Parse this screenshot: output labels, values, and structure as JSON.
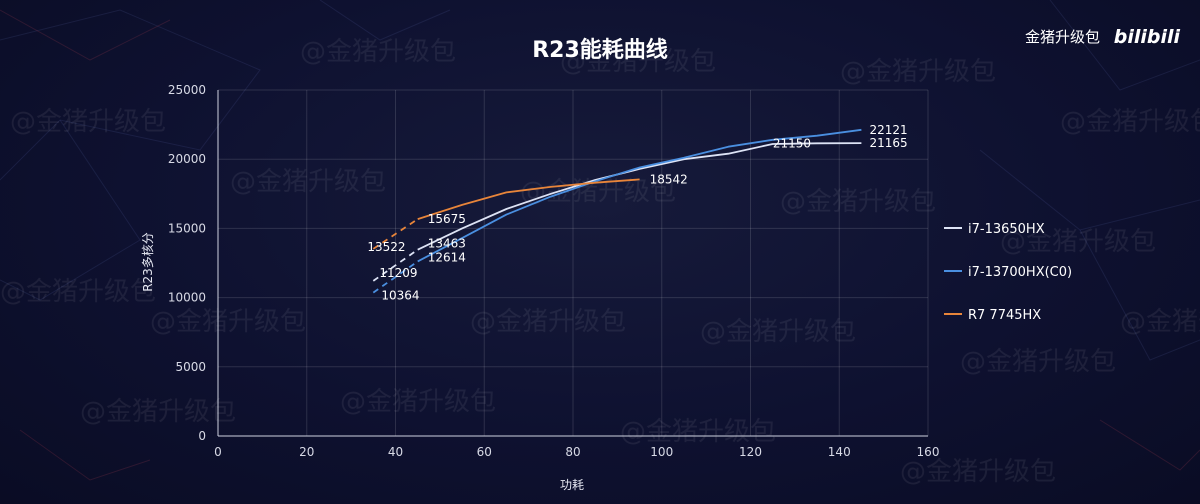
{
  "header": {
    "brand_name": "金猪升级包",
    "logo_text": "bilibili"
  },
  "watermark": "@金猪升级包",
  "chart_data": {
    "type": "line",
    "title": "R23能耗曲线",
    "xlabel": "功耗",
    "ylabel": "R23多核分",
    "xlim": [
      0,
      160
    ],
    "ylim": [
      0,
      25000
    ],
    "xticks": [
      0,
      20,
      40,
      60,
      80,
      100,
      120,
      140,
      160
    ],
    "yticks": [
      0,
      5000,
      10000,
      15000,
      20000,
      25000
    ],
    "grid": true,
    "legend_position": "right",
    "series": [
      {
        "name": "i7-13650HX",
        "color": "#dde3f5",
        "dashed_points": [
          [
            35,
            11209
          ],
          [
            45,
            13463
          ]
        ],
        "solid_points": [
          [
            45,
            13463
          ],
          [
            55,
            15000
          ],
          [
            65,
            16400
          ],
          [
            75,
            17500
          ],
          [
            85,
            18500
          ],
          [
            95,
            19300
          ],
          [
            105,
            20000
          ],
          [
            115,
            20400
          ],
          [
            125,
            21100
          ],
          [
            135,
            21150
          ],
          [
            145,
            21165
          ]
        ],
        "labels": [
          {
            "x": 35,
            "y": 11209,
            "text": "11209"
          },
          {
            "x": 45,
            "y": 13463,
            "text": "13463"
          },
          {
            "x": 135,
            "y": 21150,
            "text": "21150"
          },
          {
            "x": 145,
            "y": 21165,
            "text": "21165"
          }
        ]
      },
      {
        "name": "i7-13700HX(C0)",
        "color": "#4a8fe0",
        "dashed_points": [
          [
            35,
            10364
          ],
          [
            45,
            12614
          ]
        ],
        "solid_points": [
          [
            45,
            12614
          ],
          [
            55,
            14300
          ],
          [
            65,
            16000
          ],
          [
            75,
            17300
          ],
          [
            85,
            18400
          ],
          [
            95,
            19400
          ],
          [
            105,
            20100
          ],
          [
            115,
            20900
          ],
          [
            125,
            21400
          ],
          [
            135,
            21700
          ],
          [
            145,
            22121
          ]
        ],
        "labels": [
          {
            "x": 35,
            "y": 10364,
            "text": "10364"
          },
          {
            "x": 45,
            "y": 12614,
            "text": "12614"
          },
          {
            "x": 145,
            "y": 22121,
            "text": "22121"
          }
        ]
      },
      {
        "name": "R7 7745HX",
        "color": "#e8853a",
        "dashed_points": [
          [
            35,
            13522
          ],
          [
            45,
            15675
          ]
        ],
        "solid_points": [
          [
            45,
            15675
          ],
          [
            55,
            16700
          ],
          [
            65,
            17600
          ],
          [
            75,
            18000
          ],
          [
            85,
            18300
          ],
          [
            95,
            18542
          ]
        ],
        "labels": [
          {
            "x": 35,
            "y": 13522,
            "text": "13522"
          },
          {
            "x": 45,
            "y": 15675,
            "text": "15675"
          },
          {
            "x": 95,
            "y": 18542,
            "text": "18542"
          }
        ]
      }
    ]
  }
}
